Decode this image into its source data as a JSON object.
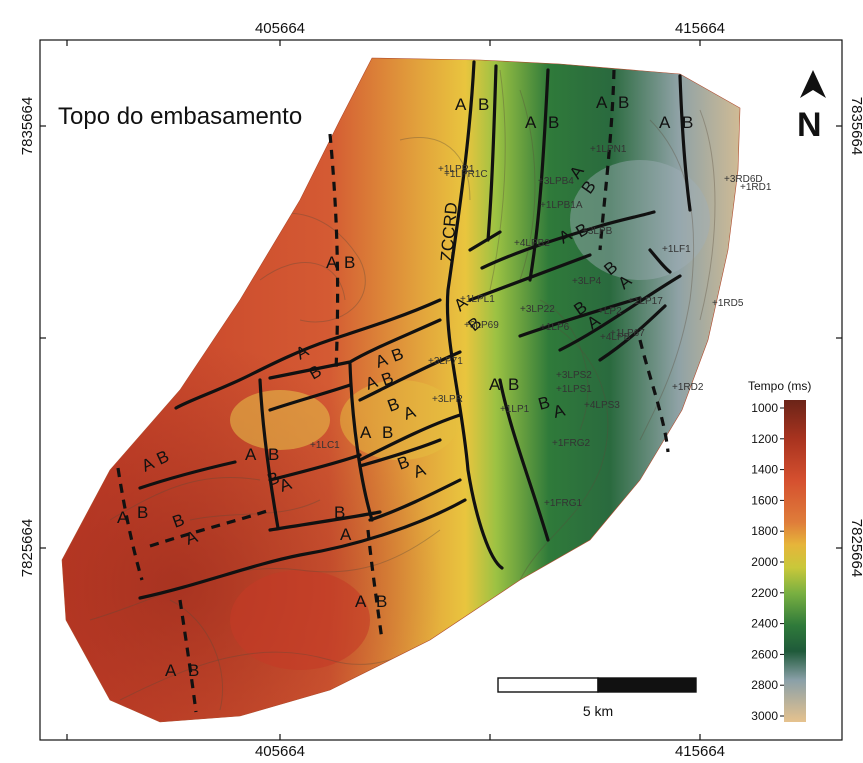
{
  "map": {
    "title": "Topo do embasamento",
    "north_label": "N",
    "coords": {
      "top_left": "405664",
      "top_right": "415664",
      "bottom_left": "405664",
      "bottom_right": "415664",
      "left_top": "7835664",
      "left_bottom": "7825664",
      "right_top": "7835664",
      "right_bottom": "7825664"
    },
    "structure_label": "ZCCRD",
    "scale": {
      "label": "5 km"
    },
    "legend": {
      "title": "Tempo (ms)",
      "ticks": [
        "1000",
        "1200",
        "1400",
        "1600",
        "1800",
        "2000",
        "2200",
        "2400",
        "2600",
        "2800",
        "3000"
      ],
      "colors": [
        "#6b2418",
        "#a8331f",
        "#d5502f",
        "#df7d3a",
        "#e6b53a",
        "#c9c83a",
        "#79b041",
        "#2f7a3a",
        "#1f5a3a",
        "#8aa0a8",
        "#e6c28e"
      ]
    },
    "wells": [
      "1LPN1",
      "3RD6D",
      "1RD1",
      "1LPR1",
      "1LPR1C",
      "3LPB4",
      "1LPB1A",
      "3LPB",
      "4LPB2",
      "1LF1",
      "3LP4",
      "1RD5",
      "1LPL1",
      "3LP22",
      "3LP69",
      "LP2",
      "1LP17",
      "1LP6",
      "4LPB",
      "1LP67",
      "3LP71",
      "3LPS2",
      "1LPS1",
      "1RD2",
      "3LPR",
      "4LPS3",
      "1LP1",
      "1LC1",
      "1FRG2",
      "1FRG1"
    ],
    "ab_labels": [
      "A",
      "B"
    ]
  }
}
